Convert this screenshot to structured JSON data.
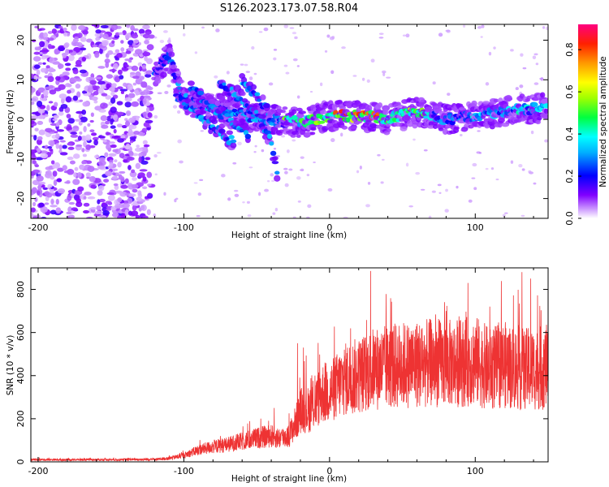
{
  "title": "S126.2023.173.07.58.R04",
  "chart_data": [
    {
      "type": "heatmap",
      "xlabel": "Height of straight line (km)",
      "ylabel": "Frequency (Hz)",
      "xlim": [
        -205,
        150
      ],
      "ylim": [
        -25,
        24
      ],
      "xticks": [
        -200,
        -100,
        0,
        100
      ],
      "yticks": [
        -20,
        -10,
        0,
        10,
        20
      ],
      "colorbar": {
        "label": "Normalized spectral amplitude",
        "range": [
          0.0,
          0.92
        ],
        "ticks": [
          "0.0",
          "0.2",
          "0.4",
          "0.6",
          "0.8"
        ],
        "colors": [
          "#ffffff",
          "#a000ff",
          "#0000ff",
          "#00ffff",
          "#00ff00",
          "#ffff00",
          "#ff9900",
          "#ff0000",
          "#ff0080"
        ]
      },
      "features": {
        "noise_region_x": [
          -205,
          -122
        ],
        "main_ridge": [
          [
            -120,
            12
          ],
          [
            -110,
            16
          ],
          [
            -100,
            5
          ],
          [
            -80,
            3
          ],
          [
            -60,
            1
          ],
          [
            -40,
            0
          ],
          [
            -20,
            -1
          ],
          [
            0,
            1
          ],
          [
            20,
            1
          ],
          [
            40,
            0
          ],
          [
            60,
            2
          ],
          [
            80,
            0
          ],
          [
            100,
            1
          ],
          [
            120,
            2
          ],
          [
            150,
            3
          ]
        ],
        "branches": [
          [
            [
              -105,
              6
            ],
            [
              -90,
              1
            ],
            [
              -75,
              -3
            ],
            [
              -65,
              -6
            ]
          ],
          [
            [
              -95,
              8
            ],
            [
              -80,
              3
            ],
            [
              -65,
              -1
            ],
            [
              -55,
              -4
            ]
          ],
          [
            [
              -75,
              9
            ],
            [
              -60,
              5
            ],
            [
              -48,
              0
            ],
            [
              -40,
              -6
            ],
            [
              -36,
              -13
            ]
          ],
          [
            [
              -60,
              10
            ],
            [
              -50,
              6
            ],
            [
              -42,
              2
            ]
          ]
        ]
      }
    },
    {
      "type": "line",
      "xlabel": "Height of straight line (km)",
      "ylabel": "SNR (10 * v/v)",
      "xlim": [
        -205,
        150
      ],
      "ylim": [
        0,
        900
      ],
      "xticks": [
        -200,
        -100,
        0,
        100
      ],
      "yticks": [
        0,
        200,
        400,
        600,
        800
      ],
      "series": [
        {
          "color": "#ee3333",
          "envelope_x": [
            -205,
            -150,
            -120,
            -110,
            -100,
            -90,
            -80,
            -70,
            -60,
            -50,
            -40,
            -35,
            -28,
            -22,
            -20,
            -15,
            -10,
            -5,
            0,
            10,
            20,
            30,
            40,
            50,
            60,
            70,
            80,
            90,
            100,
            110,
            120,
            130,
            140,
            150
          ],
          "envelope_y": [
            10,
            10,
            12,
            16,
            30,
            55,
            70,
            80,
            95,
            110,
            120,
            110,
            120,
            200,
            240,
            240,
            270,
            320,
            320,
            380,
            400,
            430,
            440,
            450,
            450,
            460,
            455,
            460,
            470,
            430,
            450,
            430,
            430,
            440
          ],
          "peaks": [
            [
              -110,
              30
            ],
            [
              -75,
              120
            ],
            [
              -38,
              250
            ],
            [
              -22,
              550
            ],
            [
              -18,
              530
            ],
            [
              -10,
              400
            ],
            [
              20,
              500
            ],
            [
              40,
              590
            ],
            [
              60,
              640
            ],
            [
              80,
              700
            ],
            [
              95,
              830
            ],
            [
              110,
              720
            ],
            [
              132,
              880
            ],
            [
              138,
              850
            ],
            [
              150,
              650
            ]
          ]
        }
      ]
    }
  ]
}
